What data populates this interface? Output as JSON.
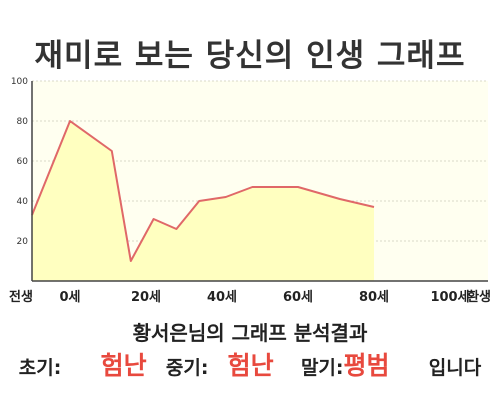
{
  "title": "재미로 보는 당신의 인생 그래프",
  "analysis_caption": "황서은님의 그래프 분석결과",
  "verdict": {
    "early_label": "초기:",
    "early_value": "험난",
    "middle_label": "중기:",
    "middle_value": "험난",
    "late_label": "말기:",
    "late_value": "평범",
    "ending": "입니다"
  },
  "colors": {
    "line": "#e06868",
    "fill": "#ffffc0",
    "plot_background": "#fffff0",
    "grid": "#d8d8c8",
    "axis": "#444444",
    "result_text": "#e8493e"
  },
  "chart_data": {
    "type": "area",
    "title": "재미로 보는 당신의 인생 그래프",
    "xlabel": "",
    "ylabel": "",
    "ylim": [
      0,
      100
    ],
    "xlim": [
      -10,
      110
    ],
    "y_ticks": [
      20,
      40,
      60,
      80,
      100
    ],
    "x_ticks": [
      {
        "value": -10,
        "label": "전생"
      },
      {
        "value": 0,
        "label": "0세"
      },
      {
        "value": 20,
        "label": "20세"
      },
      {
        "value": 40,
        "label": "40세"
      },
      {
        "value": 60,
        "label": "60세"
      },
      {
        "value": 80,
        "label": "80세"
      },
      {
        "value": 100,
        "label": "100세"
      },
      {
        "value": 110,
        "label": "환생"
      }
    ],
    "grid": true,
    "legend": "none",
    "series": [
      {
        "x": [
          -10,
          0,
          11,
          16,
          22,
          28,
          34,
          41,
          48,
          60,
          71,
          80
        ],
        "values": [
          33,
          80,
          65,
          10,
          31,
          26,
          40,
          42,
          47,
          47,
          41,
          37
        ]
      }
    ]
  }
}
